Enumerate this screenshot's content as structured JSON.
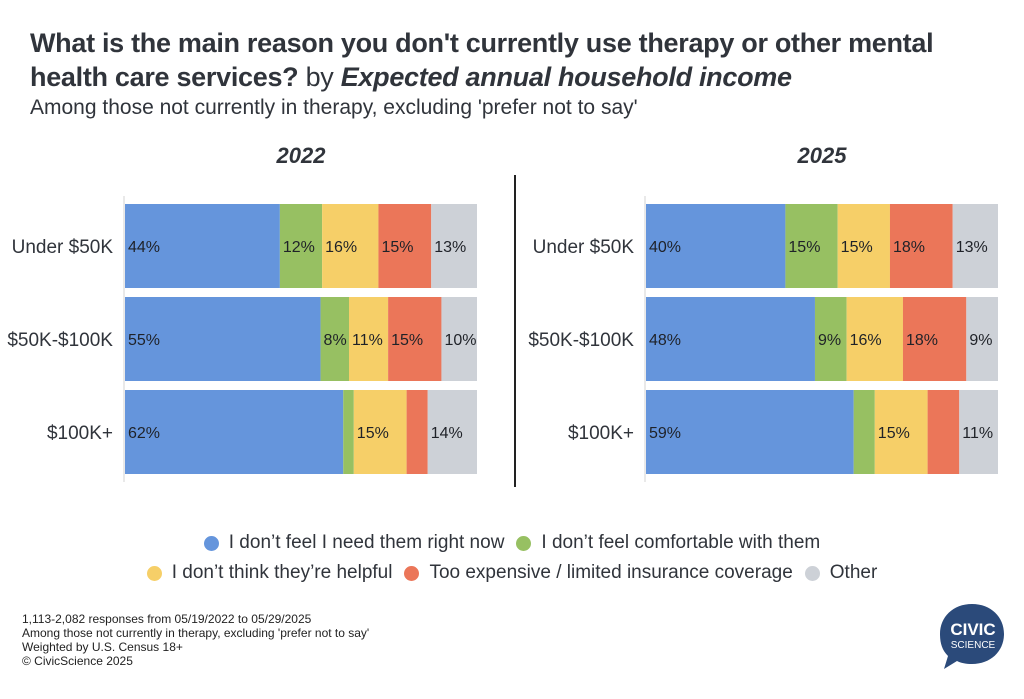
{
  "header": {
    "title_main": "What is the main reason you don't currently use therapy or other mental health care services?",
    "title_by": "by",
    "title_dimension": "Expected annual household income",
    "subtitle": "Among those not currently in therapy, excluding 'prefer not to say'"
  },
  "chart_data": {
    "type": "bar",
    "orientation": "horizontal",
    "stacked": true,
    "normalized": true,
    "title": "What is the main reason you don't currently use therapy or other mental health care services? by Expected annual household income",
    "subtitle": "Among those not currently in therapy, excluding 'prefer not to say'",
    "xlim": [
      0,
      100
    ],
    "grid": false,
    "legend_position": "bottom",
    "categories": [
      "Under $50K",
      "$50K-$100K",
      "$100K+"
    ],
    "series_names": [
      "I don’t feel I need them right now",
      "I don’t feel comfortable with them",
      "I don’t think they’re helpful",
      "Too expensive / limited insurance coverage",
      "Other"
    ],
    "series_colors": [
      "#6595dc",
      "#97c062",
      "#f6cf68",
      "#eb7659",
      "#cdd1d7"
    ],
    "panels": [
      {
        "title": "2022",
        "values": [
          [
            44,
            12,
            16,
            15,
            13
          ],
          [
            55,
            8,
            11,
            15,
            10
          ],
          [
            62,
            3,
            15,
            6,
            14
          ]
        ],
        "labels": [
          [
            "44%",
            "12%",
            "16%",
            "15%",
            "13%"
          ],
          [
            "55%",
            "8%",
            "11%",
            "15%",
            "10%"
          ],
          [
            "62%",
            "",
            "15%",
            "",
            "14%"
          ]
        ]
      },
      {
        "title": "2025",
        "values": [
          [
            40,
            15,
            15,
            18,
            13
          ],
          [
            48,
            9,
            16,
            18,
            9
          ],
          [
            59,
            6,
            15,
            9,
            11
          ]
        ],
        "labels": [
          [
            "40%",
            "15%",
            "15%",
            "18%",
            "13%"
          ],
          [
            "48%",
            "9%",
            "16%",
            "18%",
            "9%"
          ],
          [
            "59%",
            "",
            "15%",
            "",
            "11%"
          ]
        ]
      }
    ]
  },
  "legend": {
    "row1": [
      {
        "label": "I don’t feel I need them right now",
        "color": "#6595dc"
      },
      {
        "label": "I don’t feel comfortable with them",
        "color": "#97c062"
      }
    ],
    "row2": [
      {
        "label": "I don’t think they’re helpful",
        "color": "#f6cf68"
      },
      {
        "label": "Too expensive / limited insurance coverage",
        "color": "#eb7659"
      },
      {
        "label": "Other",
        "color": "#cdd1d7"
      }
    ]
  },
  "footnote": {
    "line1": "1,113-2,082 responses from 05/19/2022 to 05/29/2025",
    "line2": "Among those not currently in therapy, excluding 'prefer not to say'",
    "line3": "Weighted by U.S. Census 18+",
    "line4": "© CivicScience 2025"
  },
  "logo": {
    "line1": "CIVIC",
    "line2": "SCIENCE",
    "color": "#2b4a7a"
  }
}
